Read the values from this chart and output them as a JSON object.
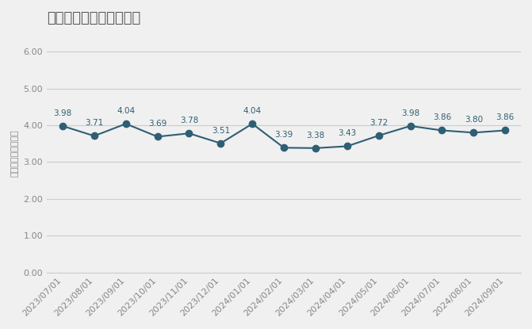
{
  "title": "民泊のみの平均滞在日数",
  "ylabel": "平均滞在日数（泊）",
  "dates": [
    "2023/07/01",
    "2023/08/01",
    "2023/09/01",
    "2023/10/01",
    "2023/11/01",
    "2023/12/01",
    "2024/01/01",
    "2024/02/01",
    "2024/03/01",
    "2024/04/01",
    "2024/05/01",
    "2024/06/01",
    "2024/07/01",
    "2024/08/01",
    "2024/09/01"
  ],
  "values": [
    3.98,
    3.71,
    4.04,
    3.69,
    3.78,
    3.51,
    4.04,
    3.39,
    3.38,
    3.43,
    3.72,
    3.98,
    3.86,
    3.8,
    3.86
  ],
  "ylim": [
    0.0,
    6.5
  ],
  "yticks": [
    0.0,
    1.0,
    2.0,
    3.0,
    4.0,
    5.0,
    6.0
  ],
  "line_color": "#2E5F74",
  "marker_color": "#2E5F74",
  "background_color": "#f0f0f0",
  "grid_color": "#cccccc",
  "title_fontsize": 13,
  "label_fontsize": 8,
  "annotation_fontsize": 7.5,
  "tick_color": "#888888",
  "title_color": "#555555"
}
